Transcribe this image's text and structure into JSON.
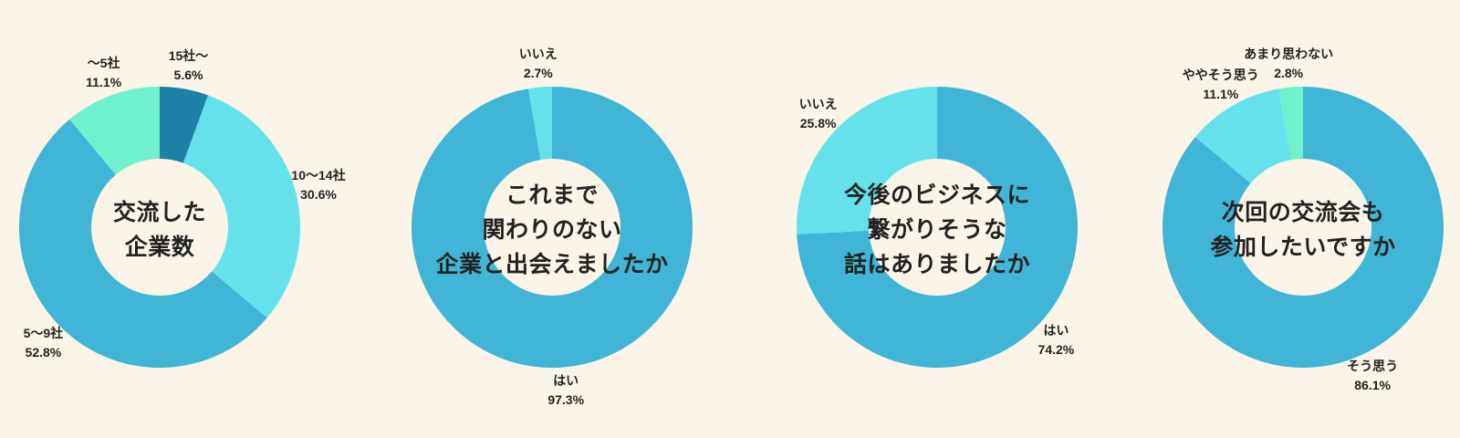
{
  "page": {
    "background_color": "#FAF5E8",
    "text_color": "#222222"
  },
  "palette": {
    "blue": "#41B5D5",
    "cyan": "#64E1EB",
    "mint": "#70F0CD",
    "deep_blue": "#1E81A8"
  },
  "chart_data": [
    {
      "type": "pie",
      "variant": "donut",
      "direction": "clockwise",
      "start_angle_deg": 0,
      "label_position": "outside",
      "unit": "%",
      "title": "交流した企業数",
      "title_lines": [
        "交流した",
        "企業数"
      ],
      "slices": [
        {
          "label": "15社〜",
          "value": 5.6,
          "color": "#1E81A8"
        },
        {
          "label": "10〜14社",
          "value": 30.6,
          "color": "#64E1EB"
        },
        {
          "label": "5〜9社",
          "value": 52.8,
          "color": "#41B5D5"
        },
        {
          "label": "〜5社",
          "value": 11.1,
          "color": "#70F0CD"
        }
      ]
    },
    {
      "type": "pie",
      "variant": "donut",
      "direction": "clockwise",
      "start_angle_deg": 0,
      "label_position": "outside",
      "unit": "%",
      "title": "これまで関わりのない企業と出会えましたか",
      "title_lines": [
        "これまで",
        "関わりのない",
        "企業と出会えましたか"
      ],
      "slices": [
        {
          "label": "はい",
          "value": 97.3,
          "color": "#41B5D5"
        },
        {
          "label": "いいえ",
          "value": 2.7,
          "color": "#64E1EB"
        }
      ]
    },
    {
      "type": "pie",
      "variant": "donut",
      "direction": "clockwise",
      "start_angle_deg": 0,
      "label_position": "outside",
      "unit": "%",
      "title": "今後のビジネスに繋がりそうな話はありましたか",
      "title_lines": [
        "今後のビジネスに",
        "繋がりそうな",
        "話はありましたか"
      ],
      "slices": [
        {
          "label": "はい",
          "value": 74.2,
          "color": "#41B5D5"
        },
        {
          "label": "いいえ",
          "value": 25.8,
          "color": "#64E1EB"
        }
      ]
    },
    {
      "type": "pie",
      "variant": "donut",
      "direction": "clockwise",
      "start_angle_deg": 0,
      "label_position": "outside",
      "unit": "%",
      "title": "次回の交流会も参加したいですか",
      "title_lines": [
        "次回の交流会も",
        "参加したいですか"
      ],
      "slices": [
        {
          "label": "そう思う",
          "value": 86.1,
          "color": "#41B5D5"
        },
        {
          "label": "ややそう思う",
          "value": 11.1,
          "color": "#64E1EB"
        },
        {
          "label": "あまり思わない",
          "value": 2.8,
          "color": "#70F0CD"
        }
      ]
    }
  ]
}
